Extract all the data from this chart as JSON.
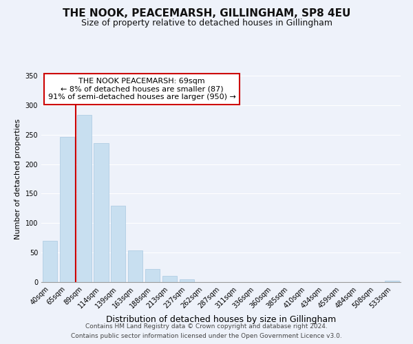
{
  "title": "THE NOOK, PEACEMARSH, GILLINGHAM, SP8 4EU",
  "subtitle": "Size of property relative to detached houses in Gillingham",
  "xlabel": "Distribution of detached houses by size in Gillingham",
  "ylabel": "Number of detached properties",
  "bar_labels": [
    "40sqm",
    "65sqm",
    "89sqm",
    "114sqm",
    "139sqm",
    "163sqm",
    "188sqm",
    "213sqm",
    "237sqm",
    "262sqm",
    "287sqm",
    "311sqm",
    "336sqm",
    "360sqm",
    "385sqm",
    "410sqm",
    "434sqm",
    "459sqm",
    "484sqm",
    "508sqm",
    "533sqm"
  ],
  "bar_values": [
    70,
    246,
    284,
    236,
    129,
    54,
    22,
    11,
    5,
    0,
    0,
    0,
    0,
    0,
    0,
    0,
    0,
    0,
    0,
    0,
    2
  ],
  "bar_color": "#c8dff0",
  "bar_edge_color": "#a8c8e0",
  "vline_x": 1,
  "vline_color": "#cc0000",
  "annotation_text": "THE NOOK PEACEMARSH: 69sqm\n← 8% of detached houses are smaller (87)\n91% of semi-detached houses are larger (950) →",
  "annotation_box_color": "white",
  "annotation_box_edge": "#cc0000",
  "ylim": [
    0,
    350
  ],
  "yticks": [
    0,
    50,
    100,
    150,
    200,
    250,
    300,
    350
  ],
  "footer_line1": "Contains HM Land Registry data © Crown copyright and database right 2024.",
  "footer_line2": "Contains public sector information licensed under the Open Government Licence v3.0.",
  "bg_color": "#eef2fa",
  "grid_color": "#ffffff",
  "title_fontsize": 11,
  "subtitle_fontsize": 9,
  "xlabel_fontsize": 9,
  "ylabel_fontsize": 8,
  "tick_fontsize": 7,
  "annotation_fontsize": 8,
  "footer_fontsize": 6.5
}
